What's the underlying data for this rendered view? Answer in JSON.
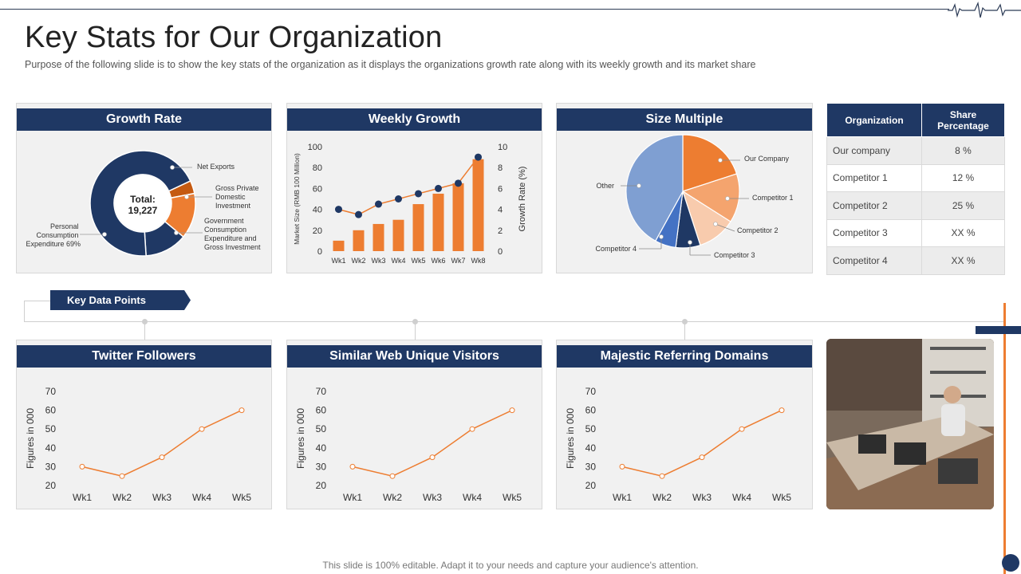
{
  "title": "Key Stats for Our Organization",
  "subtitle": "Purpose of the following slide is to show the key stats of the organization as it displays the organizations growth rate along with its weekly growth and its market share",
  "colors": {
    "navy": "#1f3864",
    "orange": "#ed7d31",
    "card_bg": "#f1f1f1"
  },
  "growth_rate": {
    "header": "Growth Rate",
    "total_label": "Total:",
    "total_value": "19,227",
    "labels": {
      "net_exports": "Net Exports",
      "gross_private": [
        "Gross Private",
        "Domestic",
        "Investment"
      ],
      "government": [
        "Government",
        "Consumption",
        "Expenditure and",
        "Gross Investment"
      ],
      "personal": [
        "Personal",
        "Consumption",
        "Expenditure 69%"
      ]
    }
  },
  "weekly_growth": {
    "header": "Weekly Growth"
  },
  "size_multiple": {
    "header": "Size Multiple",
    "labels": {
      "our_company": "Our Company",
      "competitor_1": "Competitor 1",
      "competitor_2": "Competitor 2",
      "competitor_3": "Competitor 3",
      "competitor_4": "Competitor 4",
      "other": "Other"
    }
  },
  "share_table": {
    "headers": [
      "Organization",
      "Share Percentage"
    ],
    "rows": [
      [
        "Our company",
        "8 %"
      ],
      [
        "Competitor 1",
        "12 %"
      ],
      [
        "Competitor 2",
        "25 %"
      ],
      [
        "Competitor 3",
        "XX  %"
      ],
      [
        "Competitor 4",
        "XX  %"
      ]
    ]
  },
  "key_data_points": {
    "label": "Key Data Points"
  },
  "twitter": {
    "header": "Twitter Followers"
  },
  "web_visitors": {
    "header": "Similar Web Unique Visitors"
  },
  "referring_domains": {
    "header": "Majestic Referring Domains"
  },
  "footer": "This slide is 100% editable. Adapt it to your needs and capture your audience's attention.",
  "chart_data": [
    {
      "type": "pie",
      "id": "growth_rate",
      "variant": "donut",
      "title": "Growth Rate",
      "categories": [
        "Personal Consumption Expenditure",
        "Government Consumption Expenditure and Gross Investment",
        "Gross Private Domestic Investment",
        "Net Exports"
      ],
      "values": [
        69,
        13,
        14,
        4
      ],
      "colors": [
        "#1f3864",
        "#1f3864",
        "#ed7d31",
        "#c55a11"
      ],
      "center_text": "Total: 19,227"
    },
    {
      "type": "bar",
      "id": "weekly_growth",
      "title": "Weekly Growth",
      "categories": [
        "Wk1",
        "Wk2",
        "Wk3",
        "Wk4",
        "Wk5",
        "Wk6",
        "Wk7",
        "Wk8"
      ],
      "series": [
        {
          "name": "Market Size (RMB 100 Million)",
          "type": "bar",
          "axis": "left",
          "values": [
            10,
            20,
            26,
            30,
            45,
            55,
            65,
            88
          ]
        },
        {
          "name": "Growth Rate (%)",
          "type": "line",
          "axis": "right",
          "values": [
            4,
            3.5,
            4.5,
            5,
            5.5,
            6,
            6.5,
            9
          ]
        }
      ],
      "ylabel": "Market Size (RMB 100 Million)",
      "ylabel_right": "Growth Rate (%)",
      "ylim": [
        0,
        100
      ],
      "ylim_right": [
        0,
        10
      ],
      "yticks": [
        0,
        20,
        40,
        60,
        80,
        100
      ],
      "yticks_right": [
        0,
        2,
        4,
        6,
        8,
        10
      ]
    },
    {
      "type": "pie",
      "id": "size_multiple",
      "title": "Size Multiple",
      "categories": [
        "Our Company",
        "Competitor 1",
        "Competitor 2",
        "Competitor 3",
        "Competitor 4",
        "Other"
      ],
      "values": [
        20,
        14,
        11,
        7,
        6,
        42
      ],
      "colors": [
        "#ed7d31",
        "#f4a46e",
        "#f8cbad",
        "#1f3864",
        "#4472c4",
        "#7f9fd2"
      ]
    },
    {
      "type": "line",
      "id": "twitter",
      "title": "Twitter Followers",
      "categories": [
        "Wk1",
        "Wk2",
        "Wk3",
        "Wk4",
        "Wk5"
      ],
      "values": [
        30,
        25,
        35,
        50,
        60
      ],
      "ylabel": "Figures in 000",
      "ylim": [
        20,
        70
      ],
      "yticks": [
        20,
        30,
        40,
        50,
        60,
        70
      ]
    },
    {
      "type": "line",
      "id": "web_visitors",
      "title": "Similar Web Unique Visitors",
      "categories": [
        "Wk1",
        "Wk2",
        "Wk3",
        "Wk4",
        "Wk5"
      ],
      "values": [
        30,
        25,
        35,
        50,
        60
      ],
      "ylabel": "Figures in 000",
      "ylim": [
        20,
        70
      ],
      "yticks": [
        20,
        30,
        40,
        50,
        60,
        70
      ]
    },
    {
      "type": "line",
      "id": "referring_domains",
      "title": "Majestic Referring Domains",
      "categories": [
        "Wk1",
        "Wk2",
        "Wk3",
        "Wk4",
        "Wk5"
      ],
      "values": [
        30,
        25,
        35,
        50,
        60
      ],
      "ylabel": "Figures in 000",
      "ylim": [
        20,
        70
      ],
      "yticks": [
        20,
        30,
        40,
        50,
        60,
        70
      ]
    }
  ]
}
